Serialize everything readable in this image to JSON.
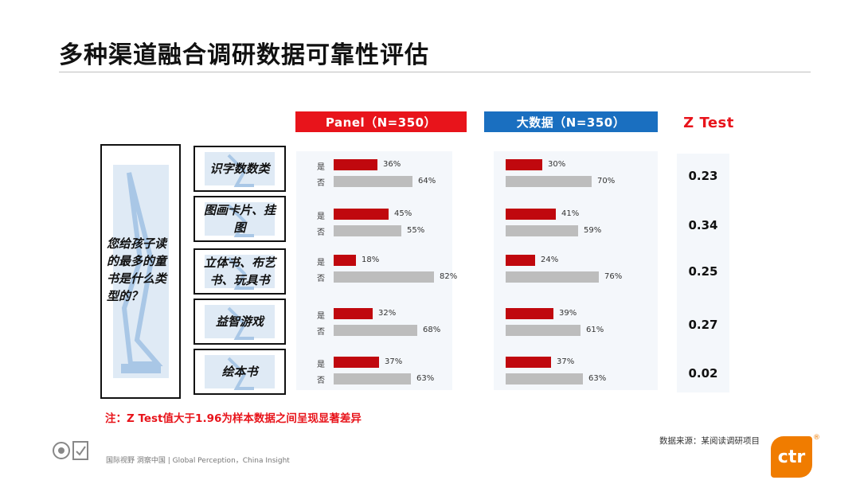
{
  "title": "多种渠道融合调研数据可靠性评估",
  "headers": {
    "panel": "Panel（N=350）",
    "bigdata": "大数据（N=350）",
    "ztest": "Z Test"
  },
  "question": "您给孩子读的最多的童书是什么类型的？",
  "row_labels": {
    "yes": "是",
    "no": "否"
  },
  "chart_data": {
    "type": "bar",
    "categories": [
      "识字数数类",
      "图画卡片、挂图",
      "立体书、布艺书、玩具书",
      "益智游戏",
      "绘本书"
    ],
    "series": [
      {
        "name": "Panel（N=350）",
        "yes": [
          36,
          45,
          18,
          32,
          37
        ],
        "no": [
          64,
          55,
          82,
          68,
          63
        ]
      },
      {
        "name": "大数据（N=350）",
        "yes": [
          30,
          41,
          24,
          39,
          37
        ],
        "no": [
          70,
          59,
          76,
          61,
          63
        ]
      }
    ],
    "value_format": "percent",
    "z_test": [
      "0.23",
      "0.34",
      "0.25",
      "0.27",
      "0.02"
    ],
    "colors": {
      "yes": "#c0080e",
      "no": "#bdbdbd"
    }
  },
  "note": "注：Z Test值大于1.96为样本数据之间呈现显著差异",
  "source": "数据来源：某阅读调研项目",
  "footer": "国际视野 洞察中国 | Global Perception，China Insight",
  "logo": {
    "text": "ctr",
    "mark": "®",
    "color": "#f07c00"
  }
}
